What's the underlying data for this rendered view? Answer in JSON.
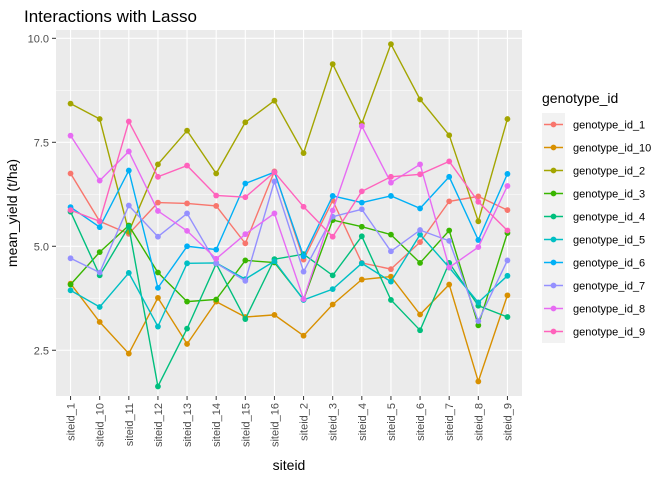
{
  "chart_data": {
    "type": "line",
    "title": "Interactions with Lasso",
    "xlabel": "siteid",
    "ylabel": "mean_yield (t/ha)",
    "ylim": [
      1.4,
      10.2
    ],
    "yticks": [
      "2.5",
      "5.0",
      "7.5",
      "10.0"
    ],
    "ytick_values": [
      2.5,
      5.0,
      7.5,
      10.0
    ],
    "grid": true,
    "legend_title": "genotype_id",
    "legend_position": "right",
    "categories": [
      "siteid_1",
      "siteid_10",
      "siteid_11",
      "siteid_12",
      "siteid_13",
      "siteid_14",
      "siteid_15",
      "siteid_16",
      "siteid_2",
      "siteid_3",
      "siteid_4",
      "siteid_5",
      "siteid_6",
      "siteid_7",
      "siteid_8",
      "siteid_9"
    ],
    "series": [
      {
        "name": "genotype_id_1",
        "color": "#F8766D",
        "values": [
          6.75,
          5.6,
          5.3,
          6.05,
          6.03,
          5.97,
          5.07,
          6.8,
          4.68,
          6.1,
          4.6,
          4.45,
          5.1,
          6.08,
          6.2,
          5.87
        ]
      },
      {
        "name": "genotype_id_10",
        "color": "#D89000",
        "values": [
          4.1,
          3.18,
          2.42,
          3.76,
          2.65,
          3.67,
          3.3,
          3.35,
          2.85,
          3.6,
          4.2,
          4.27,
          3.36,
          4.08,
          1.75,
          3.82
        ]
      },
      {
        "name": "genotype_id_2",
        "color": "#A3A500",
        "values": [
          8.43,
          8.06,
          5.35,
          6.97,
          7.78,
          6.75,
          7.98,
          8.5,
          7.24,
          9.38,
          7.95,
          9.86,
          8.53,
          7.67,
          5.6,
          8.06
        ]
      },
      {
        "name": "genotype_id_3",
        "color": "#39B600",
        "values": [
          4.08,
          4.86,
          5.5,
          4.37,
          3.67,
          3.72,
          4.66,
          4.61,
          3.72,
          5.63,
          5.47,
          5.28,
          4.6,
          5.38,
          3.1,
          5.32
        ]
      },
      {
        "name": "genotype_id_4",
        "color": "#00BF7D",
        "values": [
          5.83,
          4.3,
          5.47,
          1.63,
          3.02,
          4.58,
          3.25,
          4.69,
          4.81,
          4.3,
          5.24,
          3.71,
          2.98,
          4.6,
          3.57,
          3.3
        ]
      },
      {
        "name": "genotype_id_5",
        "color": "#00BFC4",
        "values": [
          3.94,
          3.54,
          4.36,
          3.07,
          4.59,
          4.6,
          4.21,
          4.64,
          3.71,
          3.97,
          4.59,
          4.15,
          5.28,
          4.49,
          3.65,
          4.29
        ]
      },
      {
        "name": "genotype_id_6",
        "color": "#00B0F6",
        "values": [
          5.94,
          5.46,
          6.82,
          4.0,
          5.0,
          4.92,
          6.51,
          6.78,
          4.76,
          6.21,
          6.05,
          6.21,
          5.91,
          6.67,
          5.15,
          6.74
        ]
      },
      {
        "name": "genotype_id_7",
        "color": "#9590FF",
        "values": [
          4.71,
          4.37,
          5.98,
          5.23,
          5.79,
          4.59,
          4.17,
          6.56,
          4.39,
          5.71,
          5.89,
          4.88,
          5.39,
          5.13,
          3.2,
          4.66
        ]
      },
      {
        "name": "genotype_id_8",
        "color": "#E76BF3",
        "values": [
          7.66,
          6.58,
          7.28,
          5.85,
          5.37,
          4.7,
          5.29,
          5.79,
          3.73,
          5.86,
          7.89,
          6.53,
          6.97,
          4.49,
          4.98,
          6.45
        ]
      },
      {
        "name": "genotype_id_9",
        "color": "#FF62BC",
        "values": [
          5.87,
          5.6,
          8.0,
          6.67,
          6.94,
          6.22,
          6.18,
          6.78,
          5.95,
          5.23,
          6.32,
          6.67,
          6.73,
          7.04,
          6.07,
          5.38
        ]
      }
    ]
  }
}
